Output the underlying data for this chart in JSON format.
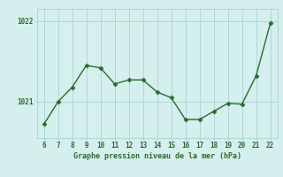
{
  "x": [
    6,
    7,
    8,
    9,
    10,
    11,
    12,
    13,
    14,
    15,
    16,
    17,
    18,
    19,
    20,
    21,
    22
  ],
  "y": [
    1020.72,
    1021.0,
    1021.18,
    1021.45,
    1021.42,
    1021.22,
    1021.27,
    1021.27,
    1021.12,
    1021.05,
    1020.78,
    1020.78,
    1020.88,
    1020.98,
    1020.97,
    1021.32,
    1021.97
  ],
  "line_color": "#2d6a2d",
  "marker_color": "#2d6a2d",
  "bg_color": "#d4efed",
  "grid_color": "#9ecece",
  "axis_label_color": "#2d6a2d",
  "tick_label_color": "#2d6a2d",
  "xlabel": "Graphe pression niveau de la mer (hPa)",
  "xlim": [
    5.5,
    22.5
  ],
  "ylim": [
    1020.55,
    1022.15
  ],
  "yticks": [
    1021,
    1022
  ],
  "xticks": [
    6,
    7,
    8,
    9,
    10,
    11,
    12,
    13,
    14,
    15,
    16,
    17,
    18,
    19,
    20,
    21,
    22
  ]
}
